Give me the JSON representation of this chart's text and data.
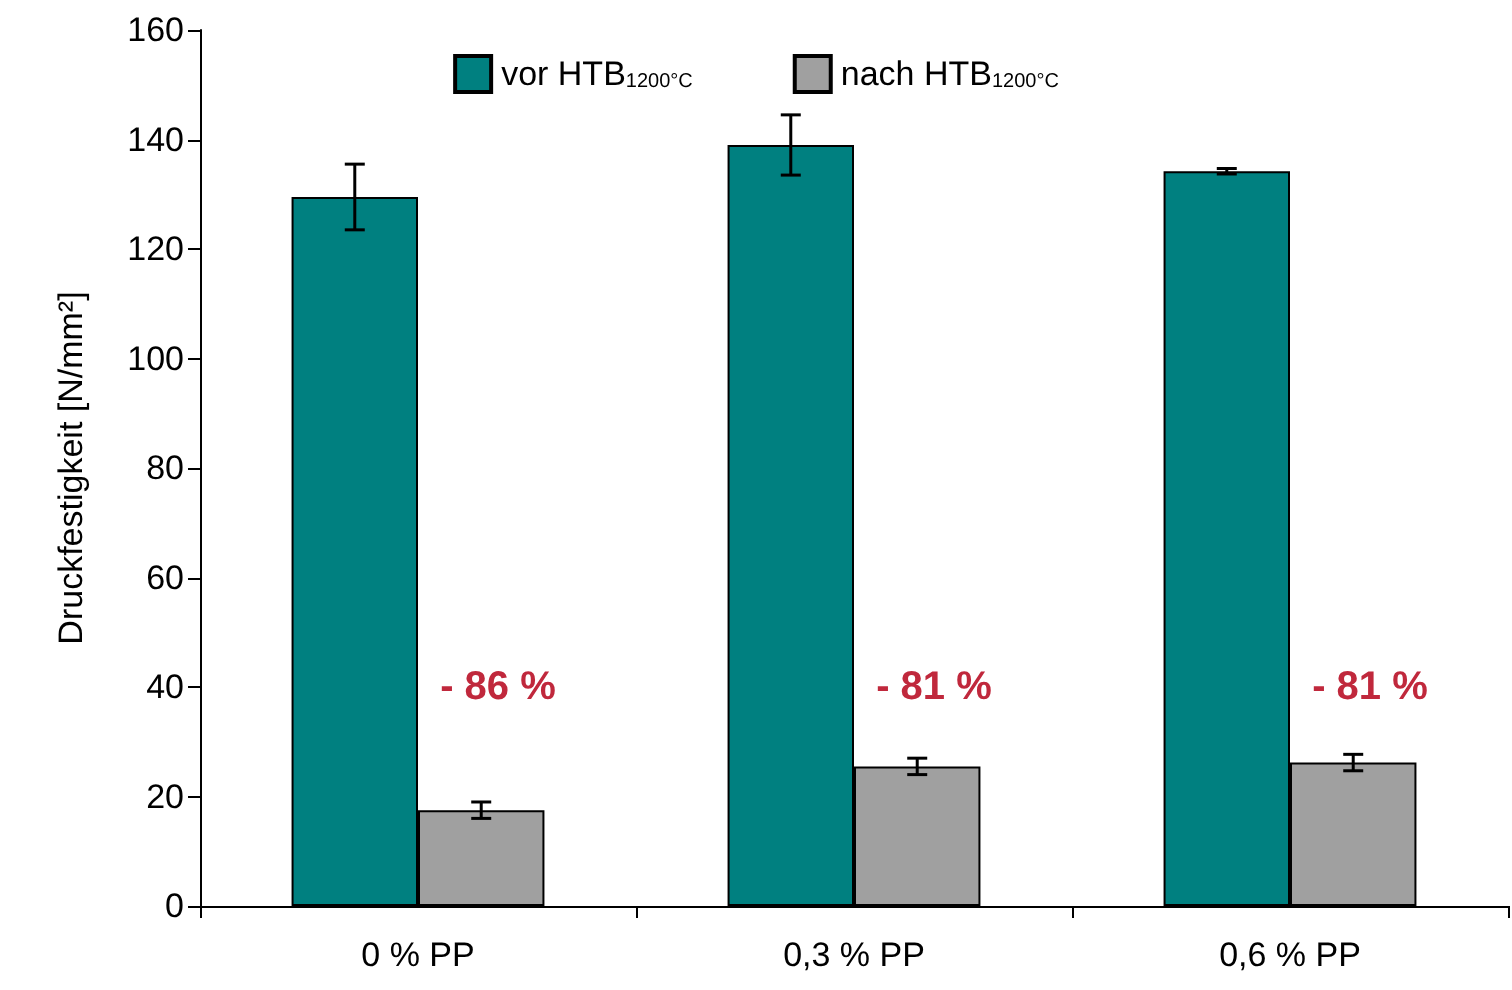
{
  "chart_data": {
    "type": "bar",
    "ylabel": "Druckfestigkeit [N/mm²]",
    "categories": [
      "0 % PP",
      "0,3 % PP",
      "0,6 % PP"
    ],
    "series": [
      {
        "name": "vor HTB$_{1200°C}$",
        "color": "#008080",
        "values": [
          129.5,
          139,
          134.2
        ],
        "errors": [
          6,
          5.5,
          0.5
        ]
      },
      {
        "name": "nach HTB$_{1200°C}$",
        "color": "#a0a0a0",
        "values": [
          17.5,
          25.5,
          26.2
        ],
        "errors": [
          1.5,
          1.5,
          1.5
        ]
      }
    ],
    "ylim": [
      0,
      160
    ],
    "yticks": [
      0,
      20,
      40,
      60,
      80,
      100,
      120,
      140,
      160
    ],
    "grid": false,
    "legend": "top",
    "annotations": [
      {
        "text": "- 86 %",
        "x": "0 % PP",
        "y": 40
      },
      {
        "text": "- 81 %",
        "x": "0,3 % PP",
        "y": 40
      },
      {
        "text": "- 81 %",
        "x": "0,6 % PP",
        "y": 40
      }
    ]
  }
}
